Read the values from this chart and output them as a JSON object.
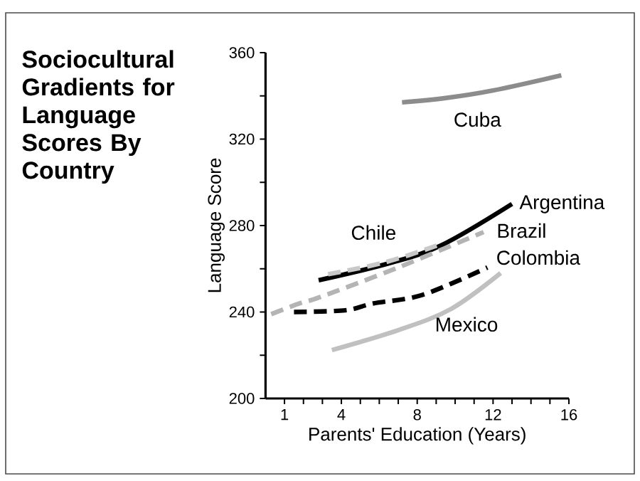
{
  "chart_data": {
    "type": "line",
    "title": "Sociocultural Gradients for Language Scores By Country",
    "xlabel": "Parents' Education (Years)",
    "ylabel": "Language Score",
    "xlim": [
      0,
      16
    ],
    "ylim": [
      200,
      360
    ],
    "xticks": [
      1,
      {
        "value": 2,
        "label": null
      },
      {
        "value": 3,
        "label": null
      },
      4,
      {
        "value": 5,
        "label": null
      },
      {
        "value": 6,
        "label": null
      },
      {
        "value": 7,
        "label": null
      },
      8,
      {
        "value": 9,
        "label": null
      },
      {
        "value": 10,
        "label": null
      },
      {
        "value": 11,
        "label": null
      },
      12,
      {
        "value": 13,
        "label": null
      },
      {
        "value": 14,
        "label": null
      },
      {
        "value": 15,
        "label": null
      },
      16
    ],
    "yticks": [
      200,
      {
        "value": 220,
        "label": null
      },
      240,
      {
        "value": 260,
        "label": null
      },
      280,
      {
        "value": 300,
        "label": null
      },
      320,
      {
        "value": 340,
        "label": null
      },
      360
    ],
    "grid": false,
    "marker": "none",
    "series": [
      {
        "name": "Cuba",
        "color": "#8c8c8c",
        "line_style": "solid",
        "x": [
          7.2,
          9.5,
          12,
          15.6
        ],
        "values": [
          337,
          339,
          342.5,
          349.5
        ]
      },
      {
        "name": "Argentina",
        "color": "#000000",
        "line_style": "solid",
        "x": [
          2.8,
          6.5,
          9.3,
          13.0
        ],
        "values": [
          254.7,
          262.5,
          271,
          290
        ]
      },
      {
        "name": "Chile",
        "color": "#c8c8c8",
        "line_style": "dashed",
        "x": [
          3.3,
          6.3,
          9.3
        ],
        "values": [
          257.5,
          263,
          271.5
        ]
      },
      {
        "name": "Brazil",
        "color": "#b4b4b4",
        "line_style": "dashed",
        "x": [
          0.3,
          1.8,
          2.9,
          7,
          11.5
        ],
        "values": [
          239,
          244,
          247,
          260.6,
          277
        ]
      },
      {
        "name": "Colombia",
        "color": "#000000",
        "line_style": "dashed",
        "x": [
          1.5,
          4.2,
          5.7,
          8.3,
          11.7
        ],
        "values": [
          240,
          240.8,
          244,
          248,
          260.6
        ]
      },
      {
        "name": "Mexico",
        "color": "#c0c0c0",
        "line_style": "solid",
        "x": [
          3.5,
          7,
          9.8,
          12.4
        ],
        "values": [
          222.4,
          231.6,
          241.5,
          258
        ]
      }
    ]
  }
}
